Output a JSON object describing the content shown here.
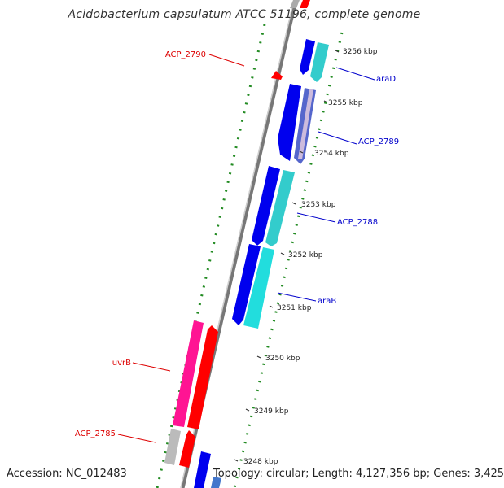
{
  "title": "Acidobacterium capsulatum ATCC 51196, complete genome",
  "footer": {
    "accession": "Accession: NC_012483",
    "summary": "Topology: circular; Length: 4,127,356 bp; Genes: 3,425"
  },
  "ticks": [
    "3256 kbp",
    "3255 kbp",
    "3254 kbp",
    "3253 kbp",
    "3252 kbp",
    "3251 kbp",
    "3250 kbp",
    "3249 kbp",
    "3248 kbp"
  ],
  "gene_labels": {
    "araD": "araD",
    "acp2789": "ACP_2789",
    "acp2788": "ACP_2788",
    "araB": "araB",
    "acp2790": "ACP_2790",
    "uvrB": "uvrB",
    "acp2785": "ACP_2785"
  },
  "colors": {
    "forward_label": "#0000cc",
    "reverse_label": "#dd0000",
    "backbone": "#888888",
    "gc_dots": "#228b22",
    "blue_cds": "#0000ee",
    "cyan_cds": "#33cccc",
    "red_cds": "#ff0000",
    "pink_cds": "#ff1493",
    "grey_cds": "#bbbbbb"
  }
}
